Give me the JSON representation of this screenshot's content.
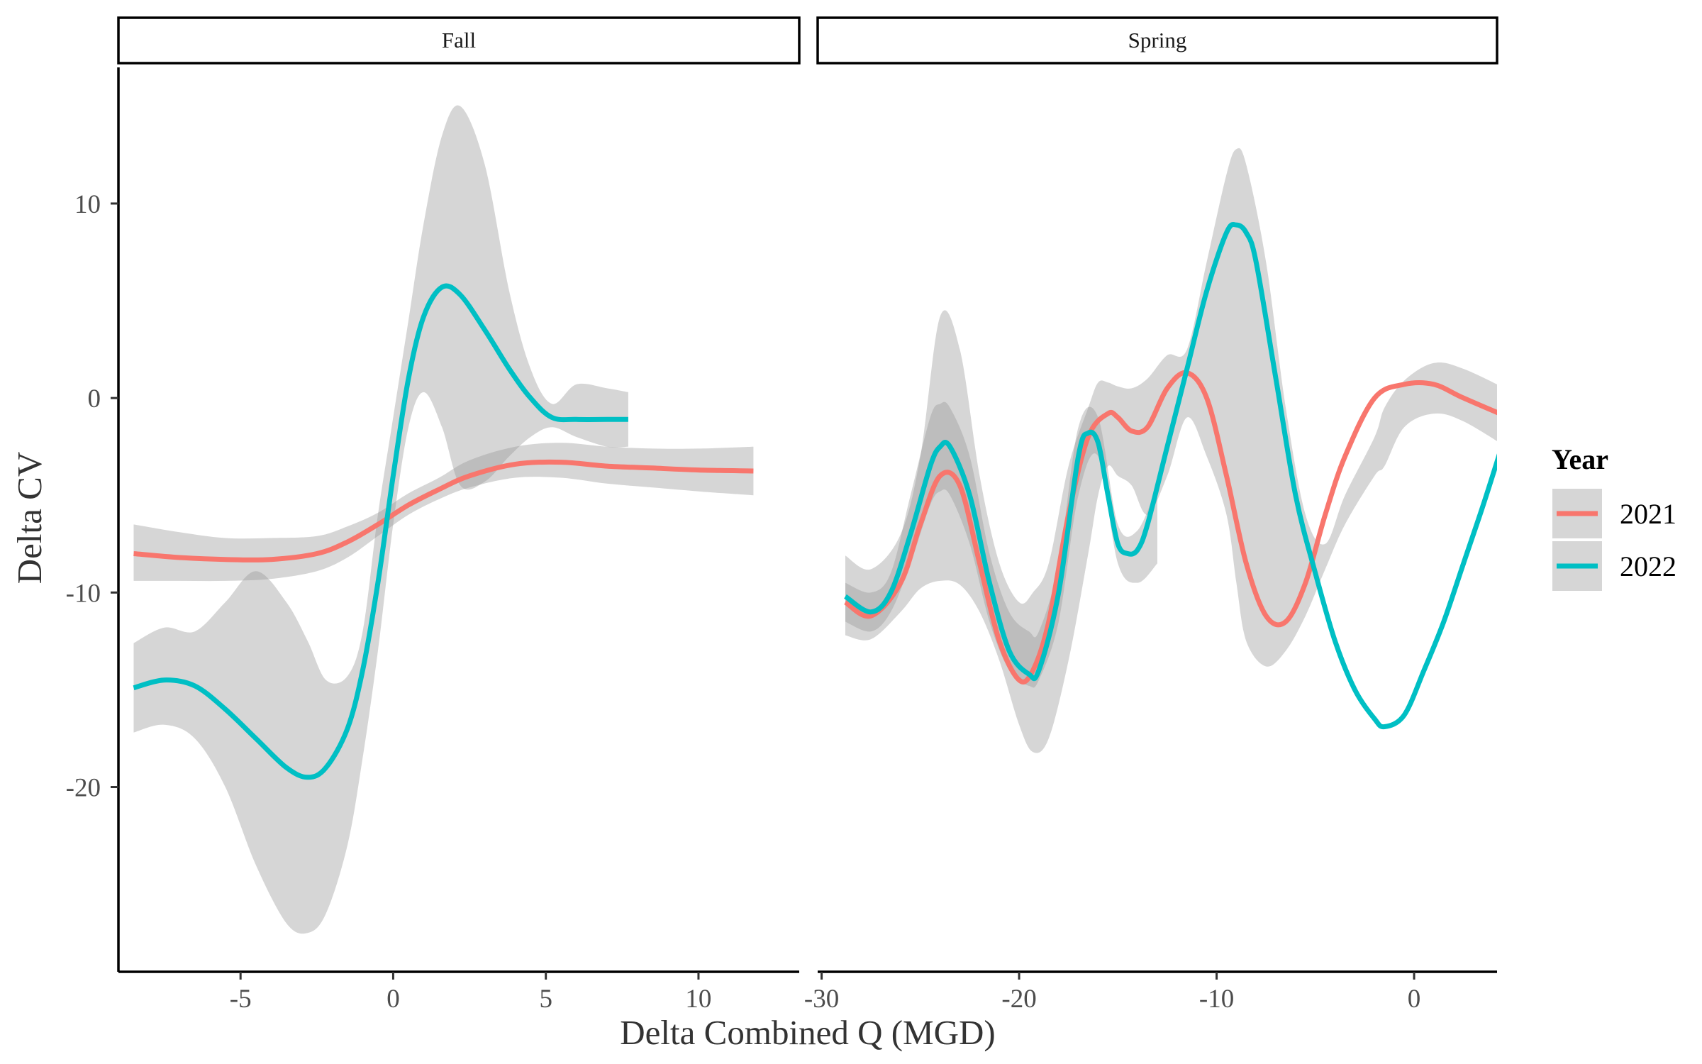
{
  "chart_data": {
    "type": "line",
    "xlabel": "Delta Combined Q (MGD)",
    "ylabel": "Delta CV",
    "ylim": [
      -29.5,
      17
    ],
    "y_ticks": [
      -20,
      -10,
      0,
      10
    ],
    "grid": false,
    "legend": {
      "title": "Year",
      "position": "right",
      "entries": [
        "2021",
        "2022"
      ]
    },
    "series_colors": {
      "2021": "#F8766D",
      "2022": "#00BFC4"
    },
    "band_color": "#999999",
    "panels": [
      {
        "name": "Fall",
        "xlim": [
          -9,
          13.3
        ],
        "x_ticks": [
          -5,
          0,
          5,
          10
        ],
        "series": [
          {
            "name": "2021",
            "x": [
              -8.5,
              -7,
              -5.5,
              -4,
              -2.5,
              -1.5,
              -0.5,
              0.5,
              1.5,
              2.5,
              4,
              5.5,
              7,
              8.5,
              10,
              11.8
            ],
            "y": [
              -8.0,
              -8.2,
              -8.3,
              -8.3,
              -8.0,
              -7.4,
              -6.5,
              -5.5,
              -4.7,
              -4.0,
              -3.4,
              -3.3,
              -3.5,
              -3.6,
              -3.7,
              -3.75
            ],
            "lower": [
              -9.4,
              -9.4,
              -9.4,
              -9.3,
              -8.9,
              -8.2,
              -7.1,
              -6.0,
              -5.2,
              -4.6,
              -4.1,
              -4.1,
              -4.4,
              -4.6,
              -4.8,
              -5.0
            ],
            "upper": [
              -6.5,
              -6.9,
              -7.2,
              -7.2,
              -7.1,
              -6.6,
              -5.9,
              -4.9,
              -4.1,
              -3.2,
              -2.5,
              -2.3,
              -2.5,
              -2.6,
              -2.6,
              -2.5
            ]
          },
          {
            "name": "2022",
            "x": [
              -8.5,
              -7.5,
              -6.5,
              -5.5,
              -4.5,
              -3.5,
              -2.8,
              -2.2,
              -1.5,
              -1.0,
              -0.5,
              0,
              0.5,
              1.0,
              1.6,
              2.2,
              3.0,
              3.8,
              4.5,
              5.2,
              6.0,
              7.0,
              7.7
            ],
            "y": [
              -14.9,
              -14.5,
              -14.8,
              -16.0,
              -17.5,
              -19.0,
              -19.5,
              -19.0,
              -17.0,
              -14.0,
              -9.5,
              -4.0,
              1.0,
              4.2,
              5.7,
              5.3,
              3.5,
              1.5,
              0.0,
              -1.0,
              -1.1,
              -1.1,
              -1.1
            ],
            "lower": [
              -17.2,
              -16.8,
              -17.5,
              -20.0,
              -24.0,
              -27.0,
              -27.5,
              -26.5,
              -23.0,
              -18.5,
              -13.0,
              -6.5,
              -1.5,
              0.3,
              -1.5,
              -4.5,
              -4.3,
              -3.0,
              -2.0,
              -1.5,
              -2.0,
              -2.5,
              -2.5
            ],
            "upper": [
              -12.6,
              -11.8,
              -12.0,
              -10.5,
              -8.9,
              -10.5,
              -12.5,
              -14.5,
              -14.3,
              -12.0,
              -6.0,
              -1.0,
              4.0,
              9.0,
              13.5,
              15.0,
              12.0,
              5.5,
              1.5,
              -0.3,
              0.7,
              0.5,
              0.3
            ]
          }
        ]
      },
      {
        "name": "Spring",
        "xlim": [
          -30.2,
          4.2
        ],
        "x_ticks": [
          -30,
          -20,
          -10,
          0
        ],
        "series": [
          {
            "name": "2021",
            "x": [
              -28.8,
              -27.5,
              -26.0,
              -25.0,
              -24.0,
              -23.0,
              -22.0,
              -21.0,
              -20.0,
              -19.3,
              -18.5,
              -17.5,
              -16.5,
              -15.5,
              -15.0,
              -14.3,
              -13.5,
              -12.5,
              -11.5,
              -10.5,
              -9.5,
              -8.5,
              -7.5,
              -6.5,
              -5.5,
              -4.5,
              -3.5,
              -2.0,
              -0.5,
              1.0,
              2.5,
              4.8
            ],
            "y": [
              -10.5,
              -11.2,
              -9.5,
              -6.5,
              -4.0,
              -4.5,
              -8.5,
              -12.5,
              -14.5,
              -14.0,
              -11.5,
              -6.0,
              -2.0,
              -0.8,
              -1.0,
              -1.7,
              -1.5,
              0.5,
              1.3,
              0.0,
              -4.0,
              -8.5,
              -11.2,
              -11.5,
              -9.5,
              -6.0,
              -3.0,
              0.0,
              0.7,
              0.7,
              0.0,
              -1.0
            ]
          },
          {
            "name": "2022",
            "x": [
              -28.8,
              -27.5,
              -26.5,
              -25.5,
              -24.5,
              -24.0,
              -23.5,
              -22.5,
              -21.5,
              -20.5,
              -19.5,
              -19.0,
              -18.0,
              -17.0,
              -16.5,
              -16.0,
              -15.5,
              -15.0,
              -14.5,
              -14.0,
              -13.5,
              -12.5,
              -11.5,
              -10.5,
              -9.5,
              -9.0,
              -8.5,
              -8.0,
              -7.0,
              -6.0,
              -5.0,
              -4.0,
              -3.0,
              -2.0,
              -1.5,
              -0.5,
              0.5,
              1.5,
              2.5,
              3.5,
              4.5
            ],
            "y": [
              -10.2,
              -11.0,
              -10.0,
              -7.0,
              -3.5,
              -2.5,
              -2.5,
              -5.0,
              -9.5,
              -13.0,
              -14.2,
              -14.0,
              -10.0,
              -3.0,
              -1.8,
              -2.3,
              -5.0,
              -7.5,
              -8.0,
              -7.8,
              -6.5,
              -2.5,
              1.5,
              5.5,
              8.5,
              8.9,
              8.5,
              7.0,
              1.0,
              -5.0,
              -9.0,
              -12.5,
              -15.0,
              -16.5,
              -16.9,
              -16.3,
              -14.0,
              -11.5,
              -8.5,
              -5.5,
              -2.3
            ]
          }
        ],
        "bands": [
          {
            "x": [
              -28.8,
              -27.5,
              -26.0,
              -25.0,
              -24.0,
              -23.0,
              -22.0,
              -21.0,
              -20.0,
              -19.3,
              -18.5,
              -17.5,
              -16.5,
              -16.0,
              -15.5,
              -15.0,
              -14.3,
              -13.5,
              -12.5,
              -11.5,
              -10.5,
              -9.5,
              -9.0,
              -8.5,
              -7.5,
              -6.5,
              -5.5,
              -4.5,
              -3.5,
              -2.0,
              -1.5,
              -0.5,
              1.0,
              2.5,
              4.8
            ],
            "lower": [
              -12.2,
              -12.4,
              -11.0,
              -9.8,
              -9.4,
              -9.6,
              -11.0,
              -13.5,
              -16.8,
              -18.2,
              -17.5,
              -13.5,
              -8.0,
              -5.0,
              -3.5,
              -4.0,
              -4.5,
              -6.0,
              -4.0,
              -1.0,
              -3.0,
              -6.0,
              -9.5,
              -12.5,
              -13.8,
              -13.0,
              -11.2,
              -8.8,
              -6.5,
              -4.0,
              -3.5,
              -1.5,
              -0.8,
              -1.2,
              -2.6
            ],
            "upper": [
              -8.1,
              -8.8,
              -7.0,
              -3.0,
              4.2,
              2.5,
              -4.0,
              -8.5,
              -10.5,
              -10.0,
              -8.5,
              -3.5,
              -0.5,
              0.8,
              0.8,
              0.6,
              0.5,
              1.0,
              2.2,
              2.5,
              7.0,
              11.5,
              12.8,
              12.0,
              7.0,
              -0.5,
              -6.0,
              -7.5,
              -5.0,
              -2.0,
              -0.5,
              0.9,
              1.8,
              1.5,
              0.4
            ]
          },
          {
            "x": [
              -28.8,
              -27.5,
              -26.5,
              -25.5,
              -24.5,
              -24.0,
              -23.5,
              -22.5,
              -21.5,
              -20.5,
              -19.5,
              -19.0,
              -18.0,
              -17.0,
              -16.0,
              -15.0,
              -14.0,
              -13.0
            ],
            "lower": [
              -11.5,
              -12.0,
              -11.0,
              -8.5,
              -5.5,
              -4.8,
              -5.0,
              -7.5,
              -11.5,
              -14.0,
              -14.8,
              -14.5,
              -11.5,
              -5.0,
              -3.0,
              -8.5,
              -9.5,
              -8.5
            ],
            "upper": [
              -9.5,
              -10.0,
              -9.0,
              -5.0,
              -1.0,
              -0.3,
              -0.5,
              -3.0,
              -8.0,
              -11.0,
              -12.0,
              -12.0,
              -8.5,
              -1.5,
              -1.0,
              -6.5,
              -6.8,
              -4.5
            ]
          }
        ]
      }
    ]
  }
}
